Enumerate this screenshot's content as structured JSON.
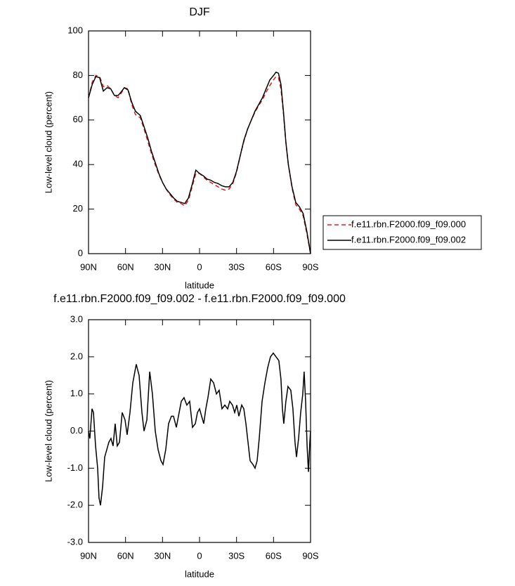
{
  "chart_data": [
    {
      "type": "line",
      "title": "DJF",
      "xlabel": "latitude",
      "ylabel": "Low-level cloud (percent)",
      "x": [
        90,
        87,
        84,
        81,
        78,
        75,
        72,
        69,
        66,
        63,
        61,
        58,
        55,
        52,
        48,
        45,
        42,
        39,
        36,
        33,
        30,
        27,
        24,
        21,
        18,
        15,
        12,
        9,
        6,
        3,
        0,
        -3,
        -6,
        -9,
        -12,
        -15,
        -18,
        -21,
        -24,
        -27,
        -30,
        -33,
        -36,
        -39,
        -42,
        -45,
        -48,
        -51,
        -54,
        -57,
        -60,
        -62,
        -64,
        -66,
        -68,
        -70,
        -72,
        -75,
        -78,
        -81,
        -84,
        -87,
        -90
      ],
      "series": [
        {
          "name": "f.e11.rbn.F2000.f09_f09.000",
          "color": "#e41a1c",
          "line_style": "dashed",
          "values": [
            70,
            77,
            80,
            79.5,
            75,
            75.5,
            74,
            71,
            70,
            72.5,
            74.5,
            74,
            67,
            62.5,
            61,
            56,
            50.5,
            45,
            40,
            35.5,
            32,
            29,
            26.5,
            24.5,
            23,
            22.5,
            21.5,
            24,
            30,
            36,
            36,
            34.5,
            33,
            32,
            31,
            30,
            29,
            28.5,
            29,
            31.5,
            36.5,
            44,
            50.5,
            56,
            60,
            63.5,
            66.5,
            69,
            72.5,
            75.5,
            78,
            79.5,
            79,
            74,
            63,
            50,
            40,
            29.5,
            22,
            20,
            17,
            9,
            0
          ]
        },
        {
          "name": "f.e11.rbn.F2000.f09_f09.002",
          "color": "#000000",
          "line_style": "solid",
          "values": [
            70,
            76,
            79.5,
            79,
            73,
            74.5,
            74,
            71,
            71,
            73,
            74.5,
            73.5,
            68,
            64,
            62,
            57,
            52,
            46,
            41,
            36,
            32,
            29,
            27,
            25,
            23.5,
            23,
            22.5,
            25,
            31,
            37.5,
            36,
            35,
            33.5,
            33,
            32,
            31.5,
            30.5,
            30,
            30,
            32,
            37,
            44,
            51,
            56,
            60,
            64,
            67,
            70,
            74,
            78,
            80,
            81.5,
            81,
            76,
            64,
            50,
            40,
            30,
            23,
            21,
            18,
            10,
            0
          ]
        }
      ],
      "xlim": [
        90,
        -90
      ],
      "xticks": [
        {
          "value": 90,
          "label": "90N"
        },
        {
          "value": 60,
          "label": "60N"
        },
        {
          "value": 30,
          "label": "30N"
        },
        0,
        {
          "value": -30,
          "label": "30S"
        },
        {
          "value": -60,
          "label": "60S"
        },
        {
          "value": -90,
          "label": "90S"
        }
      ],
      "ylim": [
        0,
        100
      ],
      "yticks": [
        0,
        20,
        40,
        60,
        80,
        100
      ],
      "legend": "right"
    },
    {
      "type": "line",
      "title": "f.e11.rbn.F2000.f09_f09.002 - f.e11.rbn.F2000.f09_f09.000",
      "xlabel": "latitude",
      "ylabel": "Low-level cloud (percent)",
      "x": [
        90,
        88.9,
        87.2,
        86,
        84.3,
        82.6,
        81.5,
        80.3,
        78.6,
        76.9,
        75.2,
        73.5,
        71.8,
        70.1,
        68.4,
        66.7,
        64.9,
        62.7,
        60.4,
        58.7,
        56.4,
        54.1,
        51.3,
        49,
        46.7,
        45,
        42.7,
        40.4,
        38.2,
        35.9,
        33.6,
        31.3,
        29.6,
        27.4,
        25.1,
        22.8,
        21.1,
        18.8,
        17.1,
        14.8,
        12.6,
        10.3,
        8,
        5.7,
        3.4,
        1.7,
        0,
        -1.7,
        -3.4,
        -5.1,
        -6.8,
        -9.1,
        -11.4,
        -13.7,
        -15.9,
        -18.2,
        -20.5,
        -22.8,
        -24.5,
        -26.7,
        -28.5,
        -30.2,
        -31.9,
        -34.2,
        -35.9,
        -37.6,
        -39.3,
        -41,
        -43.3,
        -45,
        -46.7,
        -48.4,
        -50.7,
        -53,
        -55.2,
        -57.5,
        -59.8,
        -62,
        -64.3,
        -66,
        -67.2,
        -68.3,
        -70,
        -71.7,
        -74,
        -75.7,
        -77.4,
        -78.6,
        -80.3,
        -82,
        -83.7,
        -84.8,
        -86,
        -87.2,
        -88.3,
        -89.4,
        -90
      ],
      "values": [
        0,
        -0.2,
        0.6,
        0.5,
        -0.4,
        -1,
        -1.8,
        -2,
        -1.5,
        -0.7,
        -0.5,
        -0.3,
        -0.2,
        -0.4,
        0.2,
        -0.4,
        -0.3,
        0.5,
        0.3,
        -0.1,
        0.5,
        1.3,
        1.8,
        1.5,
        0.5,
        0,
        0.3,
        1.6,
        1,
        0,
        -0.5,
        -0.8,
        -0.9,
        -0.5,
        0.2,
        0.4,
        0.4,
        0.1,
        0.4,
        0.8,
        0.9,
        0.7,
        0.8,
        0.1,
        0.2,
        0.5,
        0.6,
        0.4,
        0.2,
        0.6,
        0.9,
        1.4,
        1.3,
        1,
        1.1,
        0.6,
        0.7,
        0.6,
        0.8,
        0.7,
        0.5,
        0.7,
        0.4,
        0.7,
        0.6,
        0.2,
        -0.3,
        -0.8,
        -0.9,
        -1,
        -0.8,
        -0.2,
        0.8,
        1.3,
        1.7,
        2,
        2.1,
        2,
        1.9,
        1.4,
        0.6,
        0.2,
        0.8,
        1.2,
        1.1,
        0.6,
        -0.3,
        -0.7,
        -0.2,
        0.5,
        1,
        1.6,
        0.8,
        -0.4,
        -1.1,
        -0.3,
        0
      ],
      "color": "#000000",
      "line_style": "solid",
      "xlim": [
        90,
        -90
      ],
      "xticks": [
        {
          "value": 90,
          "label": "90N"
        },
        {
          "value": 60,
          "label": "60N"
        },
        {
          "value": 30,
          "label": "30N"
        },
        0,
        {
          "value": -30,
          "label": "30S"
        },
        {
          "value": -60,
          "label": "60S"
        },
        {
          "value": -90,
          "label": "90S"
        }
      ],
      "ylim": [
        -3,
        3
      ],
      "yticks": [
        {
          "value": -3,
          "label": "-3.0"
        },
        {
          "value": -2,
          "label": "-2.0"
        },
        {
          "value": -1,
          "label": "-1.0"
        },
        {
          "value": 0,
          "label": "0.0"
        },
        {
          "value": 1,
          "label": "1.0"
        },
        {
          "value": 2,
          "label": "2.0"
        },
        {
          "value": 3,
          "label": "3.0"
        }
      ]
    }
  ]
}
